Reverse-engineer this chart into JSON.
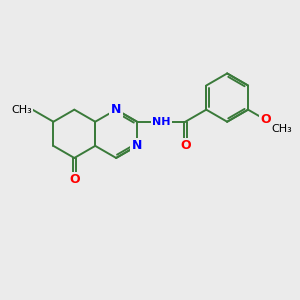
{
  "background_color": "#ebebeb",
  "bond_color": "#3a7a3a",
  "nitrogen_color": "#0000ff",
  "oxygen_color": "#ff0000",
  "line_width": 1.4,
  "font_size_atom": 9,
  "figsize": [
    3.0,
    3.0
  ],
  "dpi": 100,
  "xlim": [
    0,
    10
  ],
  "ylim": [
    0,
    10
  ]
}
